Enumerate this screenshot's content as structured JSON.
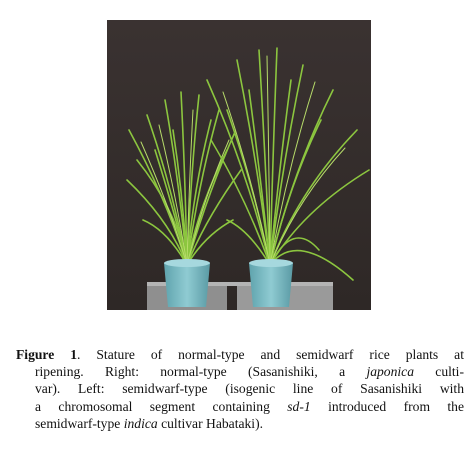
{
  "figure": {
    "photo_icon": "rice-plants-photo",
    "photo_background": "#3b3331",
    "leaf_color": "#8cc63f",
    "pot_color": "#7fbcc4",
    "caption": {
      "label": "Figure 1",
      "line1": {
        "after_label": ". Stature of normal-type and semidwarf rice plants at"
      },
      "line2": {
        "before_italic": "ripening. Right: normal-type (Sasanishiki, a ",
        "italic": "japonica",
        "after_italic": " culti-"
      },
      "line3": {
        "text": "var). Left: semidwarf-type (isogenic line of Sasanishiki with"
      },
      "line4": {
        "before_italic": "a chromosomal segment containing ",
        "italic": "sd-1",
        "after_italic": " introduced from the"
      },
      "line5": {
        "before_italic": "semidwarf-type ",
        "italic": "indica",
        "after_italic": " cultivar Habataki)."
      }
    }
  }
}
